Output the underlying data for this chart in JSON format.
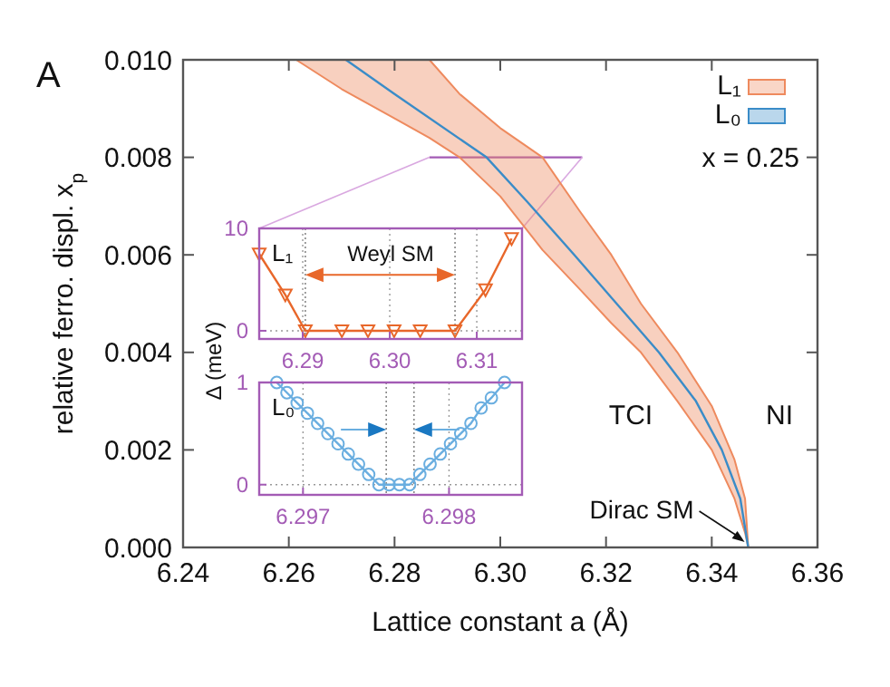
{
  "chart_data": [
    {
      "type": "line",
      "xlabel": "Lattice constant a (Å)",
      "ylabel": "relative ferro. displ. x$_{p}$",
      "xlim": [
        6.24,
        6.36
      ],
      "ylim": [
        0,
        0.01
      ],
      "xticks": [
        6.24,
        6.26,
        6.28,
        {
          "value": 6.3,
          "label": "6.30"
        },
        6.32,
        6.34,
        6.36
      ],
      "yticks": [
        {
          "value": 0,
          "label": "0.000"
        },
        {
          "value": 0.002,
          "label": "0.002"
        },
        {
          "value": 0.004,
          "label": "0.004"
        },
        {
          "value": 0.006,
          "label": "0.006"
        },
        {
          "value": 0.008,
          "label": "0.008"
        },
        {
          "value": 0.01,
          "label": "0.010"
        }
      ],
      "legend": "top right",
      "marker": "none",
      "series": [
        {
          "name": "L₁",
          "type": "area",
          "color": "#ee8a5e",
          "x": [
            6.2614,
            6.27,
            6.28,
            6.2866,
            6.2923,
            6.3,
            6.308,
            6.315,
            6.321,
            6.3266,
            6.3335,
            6.34,
            6.3443,
            6.3463,
            6.3469
          ],
          "lower": [
            0.01,
            0.0094,
            0.0088,
            0.0084,
            0.008,
            0.0072,
            0.0061,
            0.0053,
            0.0046,
            0.004,
            0.003,
            0.002,
            0.001,
            0.0003,
            0
          ],
          "values": [
            null,
            null,
            null,
            null,
            null,
            null,
            null,
            null,
            null,
            null,
            null,
            null,
            null,
            null,
            null
          ],
          "upper": [
            0.01,
            0.01,
            0.01,
            0.01,
            0.0093,
            0.0086,
            0.008,
            0.0069,
            0.006,
            0.005,
            0.004,
            0.0029,
            0.0018,
            0.001,
            0
          ]
        },
        {
          "name": "L₀",
          "color": "#3a8cc8",
          "x": [
            6.2708,
            6.28,
            6.2974,
            6.305,
            6.314,
            6.322,
            6.33,
            6.337,
            6.3419,
            6.3454,
            6.3469
          ],
          "values": [
            0.01,
            0.0093,
            0.008,
            0.0071,
            0.006,
            0.005,
            0.004,
            0.003,
            0.002,
            0.001,
            0
          ]
        }
      ],
      "annotations": [
        "A",
        "x = 0.25",
        "TCI",
        "NI",
        {
          "text": "Dirac SM",
          "x": 6.3469,
          "y": 0
        }
      ]
    },
    {
      "type": "line",
      "ylabel": "Δ (meV)",
      "xlim": [
        6.285,
        6.3152
      ],
      "ylim": [
        -0.8,
        10
      ],
      "xticks": [
        6.29,
        {
          "value": 6.3,
          "label": "6.30"
        },
        6.31
      ],
      "yticks": [
        0,
        10
      ],
      "grid": true,
      "marker": "triangle",
      "series": [
        {
          "color": "#e8672a",
          "x": [
            6.285,
            6.288,
            6.2903,
            6.2945,
            6.2975,
            6.3005,
            6.3035,
            6.3075,
            6.311,
            6.314
          ],
          "values": [
            7.5,
            3.5,
            0,
            0,
            0,
            0,
            0,
            0,
            4,
            9
          ]
        }
      ],
      "ref_lines": [
        {
          "axis": "x",
          "value": 6.2903
        },
        {
          "axis": "x",
          "value": 6.3075
        }
      ],
      "annotations": [
        "L₁",
        "Weyl SM"
      ]
    },
    {
      "type": "line",
      "xlim": [
        6.2967,
        6.2985
      ],
      "ylim": [
        -0.1,
        1
      ],
      "xticks": [
        6.297,
        6.298
      ],
      "yticks": [
        0,
        1
      ],
      "grid": true,
      "marker": "circle",
      "series": [
        {
          "color": "#6aaee0",
          "x": [
            6.29682,
            6.29689,
            6.29696,
            6.29703,
            6.2971,
            6.29717,
            6.29724,
            6.29731,
            6.29738,
            6.29745,
            6.29752,
            6.29759,
            6.29766,
            6.29773,
            6.2978,
            6.29787,
            6.29794,
            6.29801,
            6.29808,
            6.29815,
            6.29822,
            6.29829,
            6.29838
          ],
          "values": [
            1,
            0.9,
            0.8,
            0.7,
            0.6,
            0.5,
            0.4,
            0.3,
            0.2,
            0.1,
            0,
            0,
            0,
            0,
            0.1,
            0.2,
            0.3,
            0.4,
            0.5,
            0.6,
            0.75,
            0.85,
            1
          ]
        }
      ],
      "ref_lines": [
        {
          "axis": "x",
          "value": 6.29757
        },
        {
          "axis": "x",
          "value": 6.29776
        }
      ],
      "annotations": [
        "L₀"
      ]
    }
  ]
}
